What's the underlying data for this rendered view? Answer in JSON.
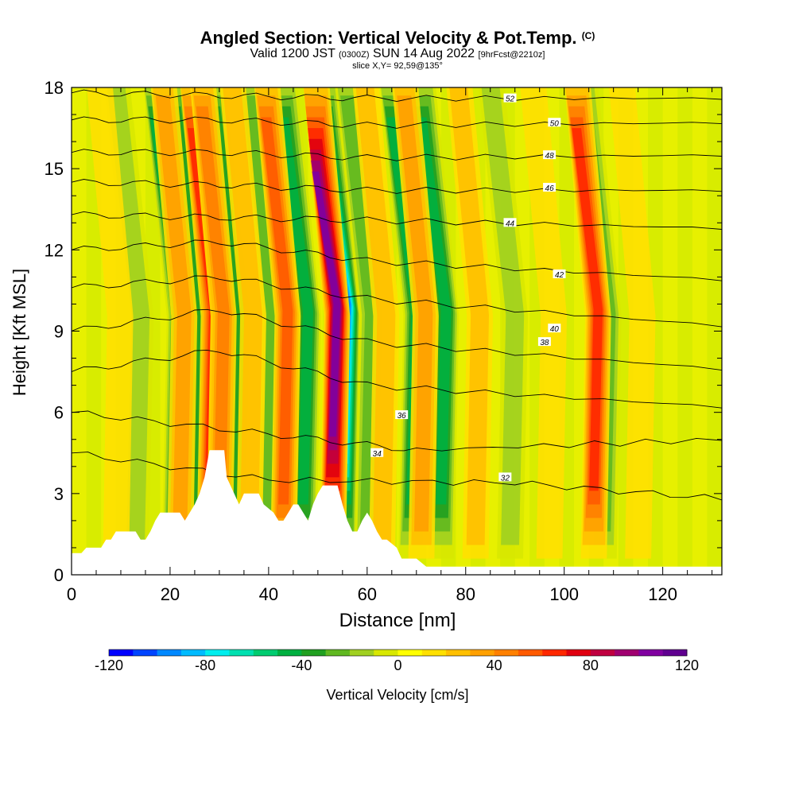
{
  "header": {
    "title": "Angled Section: Vertical Velocity & Pot.Temp.",
    "title_suffix": "(C)",
    "valid_prefix": "Valid 1200 JST",
    "valid_utc": "(0300Z)",
    "valid_date": "SUN 14 Aug 2022",
    "forecast": "[9hrFcst@2210z]",
    "slice": "slice X,Y= 92,59@135°"
  },
  "chart_data": {
    "type": "heatmap",
    "xlabel": "Distance [nm]",
    "ylabel": "Height [Kft MSL]",
    "xlim": [
      0,
      132
    ],
    "ylim": [
      0,
      18
    ],
    "x_ticks": [
      0,
      20,
      40,
      60,
      80,
      100,
      120
    ],
    "y_ticks": [
      0,
      3,
      6,
      9,
      12,
      15,
      18
    ],
    "colorbar": {
      "label": "Vertical Velocity [cm/s]",
      "range": [
        -120,
        120
      ],
      "tick_values": [
        -120,
        -80,
        -40,
        0,
        40,
        80,
        120
      ],
      "colors": [
        "#0000ff",
        "#0044ff",
        "#0088ff",
        "#00bbff",
        "#00eeee",
        "#00e0b0",
        "#00cc70",
        "#00b040",
        "#20a020",
        "#60b820",
        "#a0d020",
        "#d8e800",
        "#ffff00",
        "#ffe000",
        "#ffc000",
        "#ffa000",
        "#ff8000",
        "#ff5a00",
        "#ff2800",
        "#e00010",
        "#c00040",
        "#a00070",
        "#8000a0",
        "#600090"
      ]
    },
    "updrafts": [
      {
        "x": 9,
        "peak": 8
      },
      {
        "x": 22,
        "peak": 28
      },
      {
        "x": 28,
        "peak": 55
      },
      {
        "x": 30,
        "peak": 40
      },
      {
        "x": 36,
        "peak": 18
      },
      {
        "x": 43,
        "peak": 45
      },
      {
        "x": 53,
        "peak": 95
      },
      {
        "x": 63,
        "peak": 16
      },
      {
        "x": 71,
        "peak": 25
      },
      {
        "x": 82,
        "peak": 20
      },
      {
        "x": 97,
        "peak": 12
      },
      {
        "x": 106,
        "peak": 60
      },
      {
        "x": 115,
        "peak": 10
      }
    ],
    "downdrafts": [
      {
        "x": 13,
        "peak": -20
      },
      {
        "x": 21,
        "peak": -45
      },
      {
        "x": 25,
        "peak": -35
      },
      {
        "x": 33,
        "peak": -35
      },
      {
        "x": 40,
        "peak": -25
      },
      {
        "x": 47,
        "peak": -45
      },
      {
        "x": 55,
        "peak": -95
      },
      {
        "x": 60,
        "peak": -30
      },
      {
        "x": 69,
        "peak": -45
      },
      {
        "x": 75,
        "peak": -45
      },
      {
        "x": 89,
        "peak": -15
      },
      {
        "x": 108,
        "peak": -25
      }
    ],
    "theta_contours": [
      {
        "label": "32",
        "levels": [
          [
            0,
            4.5
          ],
          [
            40,
            3.5
          ],
          [
            90,
            3.4
          ],
          [
            132,
            2.8
          ]
        ],
        "label_at": [
          88,
          3.6
        ]
      },
      {
        "label": "34",
        "levels": [
          [
            0,
            6.0
          ],
          [
            40,
            5.2
          ],
          [
            70,
            4.6
          ],
          [
            132,
            5.0
          ]
        ],
        "label_at": [
          62,
          4.5
        ]
      },
      {
        "label": "36",
        "levels": [
          [
            0,
            7.5
          ],
          [
            30,
            8.3
          ],
          [
            60,
            7.0
          ],
          [
            132,
            6.2
          ]
        ],
        "label_at": [
          67,
          5.9
        ]
      },
      {
        "label": "38",
        "levels": [
          [
            0,
            9.0
          ],
          [
            30,
            9.8
          ],
          [
            60,
            8.6
          ],
          [
            132,
            7.6
          ]
        ],
        "label_at": [
          96,
          8.6
        ]
      },
      {
        "label": "40",
        "levels": [
          [
            0,
            10.6
          ],
          [
            30,
            11.0
          ],
          [
            60,
            10.2
          ],
          [
            132,
            9.2
          ]
        ],
        "label_at": [
          98,
          9.1
        ]
      },
      {
        "label": "42",
        "levels": [
          [
            0,
            12.0
          ],
          [
            30,
            12.3
          ],
          [
            60,
            11.6
          ],
          [
            132,
            10.9
          ]
        ],
        "label_at": [
          99,
          11.1
        ]
      },
      {
        "label": "44",
        "levels": [
          [
            0,
            13.3
          ],
          [
            30,
            13.2
          ],
          [
            60,
            13.1
          ],
          [
            132,
            12.8
          ]
        ],
        "label_at": [
          89,
          13.0
        ]
      },
      {
        "label": "46",
        "levels": [
          [
            0,
            14.5
          ],
          [
            30,
            14.4
          ],
          [
            60,
            14.2
          ],
          [
            132,
            14.2
          ]
        ],
        "label_at": [
          97,
          14.3
        ]
      },
      {
        "label": "48",
        "levels": [
          [
            0,
            15.6
          ],
          [
            30,
            15.6
          ],
          [
            60,
            15.4
          ],
          [
            132,
            15.5
          ]
        ],
        "label_at": [
          97,
          15.5
        ]
      },
      {
        "label": "50",
        "levels": [
          [
            0,
            16.8
          ],
          [
            30,
            16.8
          ],
          [
            60,
            16.6
          ],
          [
            132,
            16.7
          ]
        ],
        "label_at": [
          98,
          16.7
        ]
      },
      {
        "label": "52",
        "levels": [
          [
            0,
            17.8
          ],
          [
            30,
            17.7
          ],
          [
            60,
            17.6
          ],
          [
            132,
            17.6
          ]
        ],
        "label_at": [
          89,
          17.6
        ]
      }
    ],
    "terrain": [
      [
        0,
        0.8
      ],
      [
        2,
        0.8
      ],
      [
        3,
        1.0
      ],
      [
        6,
        1.0
      ],
      [
        7,
        1.3
      ],
      [
        8,
        1.3
      ],
      [
        9,
        1.6
      ],
      [
        13,
        1.6
      ],
      [
        14,
        1.3
      ],
      [
        15,
        1.3
      ],
      [
        16,
        1.6
      ],
      [
        17,
        2.0
      ],
      [
        18,
        2.3
      ],
      [
        22,
        2.3
      ],
      [
        23,
        2.0
      ],
      [
        24,
        2.3
      ],
      [
        25,
        2.6
      ],
      [
        26,
        3.0
      ],
      [
        27,
        3.6
      ],
      [
        28,
        4.6
      ],
      [
        31,
        4.6
      ],
      [
        31.5,
        3.6
      ],
      [
        33,
        3.0
      ],
      [
        34,
        2.6
      ],
      [
        35,
        3.0
      ],
      [
        38,
        3.0
      ],
      [
        39,
        2.6
      ],
      [
        41,
        2.3
      ],
      [
        42,
        2.0
      ],
      [
        43,
        2.0
      ],
      [
        44,
        2.3
      ],
      [
        45,
        2.6
      ],
      [
        46,
        2.6
      ],
      [
        47,
        2.3
      ],
      [
        48,
        2.0
      ],
      [
        49,
        2.6
      ],
      [
        50,
        3.0
      ],
      [
        51,
        3.3
      ],
      [
        54,
        3.3
      ],
      [
        55,
        2.6
      ],
      [
        56,
        2.0
      ],
      [
        57,
        1.6
      ],
      [
        58,
        1.6
      ],
      [
        59,
        2.0
      ],
      [
        60,
        2.3
      ],
      [
        61,
        2.0
      ],
      [
        62,
        1.6
      ],
      [
        63,
        1.3
      ],
      [
        64,
        1.3
      ],
      [
        66,
        1.0
      ],
      [
        67,
        0.6
      ],
      [
        70,
        0.6
      ],
      [
        72,
        0.3
      ],
      [
        132,
        0.3
      ]
    ]
  }
}
